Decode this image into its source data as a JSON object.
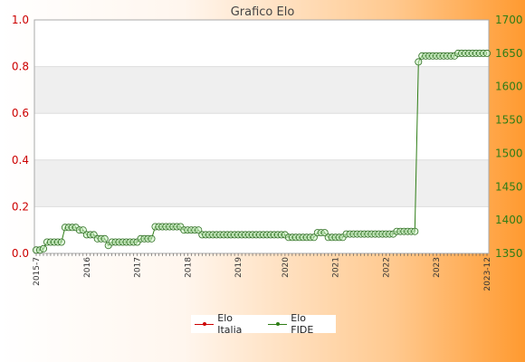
{
  "chart_data": {
    "type": "line",
    "title": "Grafico Elo",
    "y_left": {
      "ylim": [
        0,
        1
      ],
      "ticks": [
        "0.0",
        "0.2",
        "0.4",
        "0.6",
        "0.8",
        "1.0"
      ]
    },
    "y_right": {
      "ylim": [
        1350,
        1700
      ],
      "ticks": [
        "1350",
        "1400",
        "1450",
        "1500",
        "1550",
        "1600",
        "1650",
        "1700"
      ]
    },
    "grid": "horizontal bands",
    "legend_position": "bottom",
    "x_first_label": "2015-7",
    "x_last_label": "2023-12",
    "x_label_examples": [
      "2016",
      "2017",
      "2018",
      "2019",
      "2020",
      "2021",
      "2022",
      "2023"
    ],
    "series": [
      {
        "name": "Elo Italia",
        "color": "#cc0000",
        "axis": "left",
        "values": []
      },
      {
        "name": "Elo FIDE",
        "color": "#2e7d16",
        "axis": "right",
        "values": [
          {
            "i": 0,
            "y": 1355
          },
          {
            "i": 2,
            "y": 1357
          },
          {
            "i": 3,
            "y": 1367
          },
          {
            "i": 7,
            "y": 1367
          },
          {
            "i": 8,
            "y": 1389
          },
          {
            "i": 11,
            "y": 1389
          },
          {
            "i": 12,
            "y": 1385
          },
          {
            "i": 13,
            "y": 1385
          },
          {
            "i": 14,
            "y": 1378
          },
          {
            "i": 16,
            "y": 1378
          },
          {
            "i": 17,
            "y": 1372
          },
          {
            "i": 19,
            "y": 1372
          },
          {
            "i": 20,
            "y": 1362
          },
          {
            "i": 21,
            "y": 1367
          },
          {
            "i": 28,
            "y": 1367
          },
          {
            "i": 29,
            "y": 1372
          },
          {
            "i": 32,
            "y": 1372
          },
          {
            "i": 33,
            "y": 1390
          },
          {
            "i": 40,
            "y": 1390
          },
          {
            "i": 41,
            "y": 1385
          },
          {
            "i": 45,
            "y": 1385
          },
          {
            "i": 46,
            "y": 1378
          },
          {
            "i": 69,
            "y": 1378
          },
          {
            "i": 70,
            "y": 1374
          },
          {
            "i": 77,
            "y": 1374
          },
          {
            "i": 78,
            "y": 1381
          },
          {
            "i": 80,
            "y": 1381
          },
          {
            "i": 81,
            "y": 1374
          },
          {
            "i": 85,
            "y": 1374
          },
          {
            "i": 86,
            "y": 1379
          },
          {
            "i": 99,
            "y": 1379
          },
          {
            "i": 100,
            "y": 1383
          },
          {
            "i": 105,
            "y": 1383
          },
          {
            "i": 106,
            "y": 1637
          },
          {
            "i": 107,
            "y": 1646
          },
          {
            "i": 116,
            "y": 1646
          },
          {
            "i": 117,
            "y": 1650
          },
          {
            "i": 125,
            "y": 1650
          }
        ]
      }
    ]
  }
}
